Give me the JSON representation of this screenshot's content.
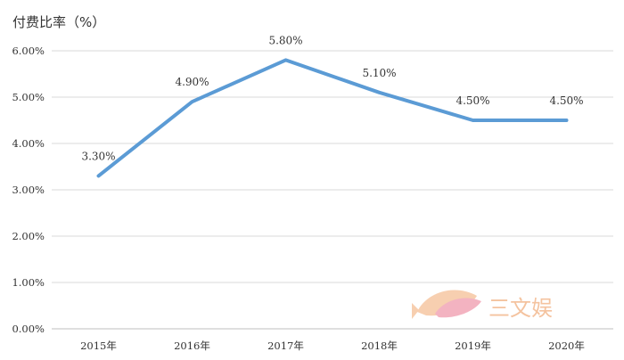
{
  "chart_data": {
    "type": "line",
    "title": "",
    "ylabel": "付费比率（%）",
    "xlabel": "",
    "categories": [
      "2015年",
      "2016年",
      "2017年",
      "2018年",
      "2019年",
      "2020年"
    ],
    "series": [
      {
        "values": [
          3.3,
          4.9,
          5.8,
          5.1,
          4.5,
          4.5
        ],
        "labels": [
          "3.30%",
          "4.90%",
          "5.80%",
          "5.10%",
          "4.50%",
          "4.50%"
        ],
        "color": "#5b9bd5"
      }
    ],
    "ylim": [
      0,
      6
    ],
    "yticks": [
      0,
      1,
      2,
      3,
      4,
      5,
      6
    ],
    "ytick_labels": [
      "0.00%",
      "1.00%",
      "2.00%",
      "3.00%",
      "4.00%",
      "5.00%",
      "6.00%"
    ],
    "grid": true,
    "legend": "none"
  },
  "watermark": {
    "text": "三文娱",
    "icon": "fish-logo-icon",
    "color": "#f3b98f"
  }
}
